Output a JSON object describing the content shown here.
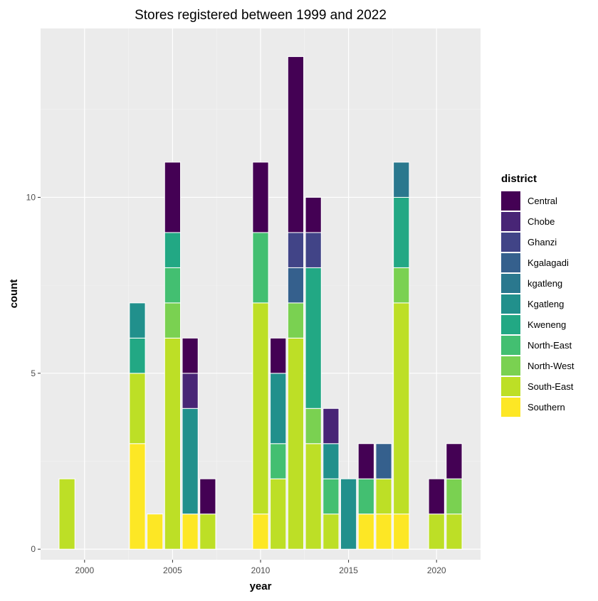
{
  "chart_data": {
    "type": "bar",
    "stacked": true,
    "title": "Stores registered between 1999 and 2022",
    "xlabel": "year",
    "ylabel": "count",
    "xlim": [
      1997.5,
      2022.5
    ],
    "ylim": [
      -0.3,
      14.8
    ],
    "x_ticks": [
      2000,
      2005,
      2010,
      2015,
      2020
    ],
    "y_ticks": [
      0,
      5,
      10
    ],
    "grid": true,
    "background": "#ebebeb",
    "legend": {
      "title": "district",
      "position": "right",
      "entries": [
        {
          "name": "Central",
          "color": "#440154"
        },
        {
          "name": "Chobe",
          "color": "#482576"
        },
        {
          "name": "Ghanzi",
          "color": "#414487"
        },
        {
          "name": "Kgalagadi",
          "color": "#35608d"
        },
        {
          "name": "kgatleng",
          "color": "#2a788e"
        },
        {
          "name": "Kgatleng",
          "color": "#21908c"
        },
        {
          "name": "Kweneng",
          "color": "#22a884"
        },
        {
          "name": "North-East",
          "color": "#43bf71"
        },
        {
          "name": "North-West",
          "color": "#7ad151"
        },
        {
          "name": "South-East",
          "color": "#bddf26"
        },
        {
          "name": "Southern",
          "color": "#fde725"
        }
      ]
    },
    "bars": [
      {
        "year": 1999,
        "counts": {
          "South-East": 2
        }
      },
      {
        "year": 2003,
        "counts": {
          "Southern": 3,
          "South-East": 2,
          "Kweneng": 1,
          "Kgatleng": 1
        }
      },
      {
        "year": 2004,
        "counts": {
          "Southern": 1
        }
      },
      {
        "year": 2005,
        "counts": {
          "South-East": 6,
          "North-West": 1,
          "North-East": 1,
          "Kweneng": 1,
          "Central": 2
        }
      },
      {
        "year": 2006,
        "counts": {
          "Southern": 1,
          "Kgatleng": 3,
          "Chobe": 1,
          "Central": 1
        }
      },
      {
        "year": 2007,
        "counts": {
          "South-East": 1,
          "Central": 1
        }
      },
      {
        "year": 2010,
        "counts": {
          "Southern": 1,
          "South-East": 6,
          "North-East": 2,
          "Central": 2
        }
      },
      {
        "year": 2011,
        "counts": {
          "South-East": 2,
          "North-East": 1,
          "Kgatleng": 2,
          "Central": 1
        }
      },
      {
        "year": 2012,
        "counts": {
          "South-East": 6,
          "North-West": 1,
          "Kgalagadi": 1,
          "Ghanzi": 1,
          "Central": 5
        }
      },
      {
        "year": 2013,
        "counts": {
          "South-East": 3,
          "North-West": 1,
          "Kweneng": 4,
          "Ghanzi": 1,
          "Central": 1
        }
      },
      {
        "year": 2014,
        "counts": {
          "South-East": 1,
          "North-East": 1,
          "Kgatleng": 1,
          "Chobe": 1
        }
      },
      {
        "year": 2015,
        "counts": {
          "Kgatleng": 2
        }
      },
      {
        "year": 2016,
        "counts": {
          "Southern": 1,
          "North-East": 1,
          "Central": 1
        }
      },
      {
        "year": 2017,
        "counts": {
          "Southern": 1,
          "South-East": 1,
          "Kgalagadi": 1
        }
      },
      {
        "year": 2018,
        "counts": {
          "Southern": 1,
          "South-East": 6,
          "North-West": 1,
          "Kweneng": 2,
          "kgatleng": 1
        }
      },
      {
        "year": 2020,
        "counts": {
          "South-East": 1,
          "Central": 1
        }
      },
      {
        "year": 2021,
        "counts": {
          "South-East": 1,
          "North-West": 1,
          "Central": 1
        }
      }
    ]
  }
}
